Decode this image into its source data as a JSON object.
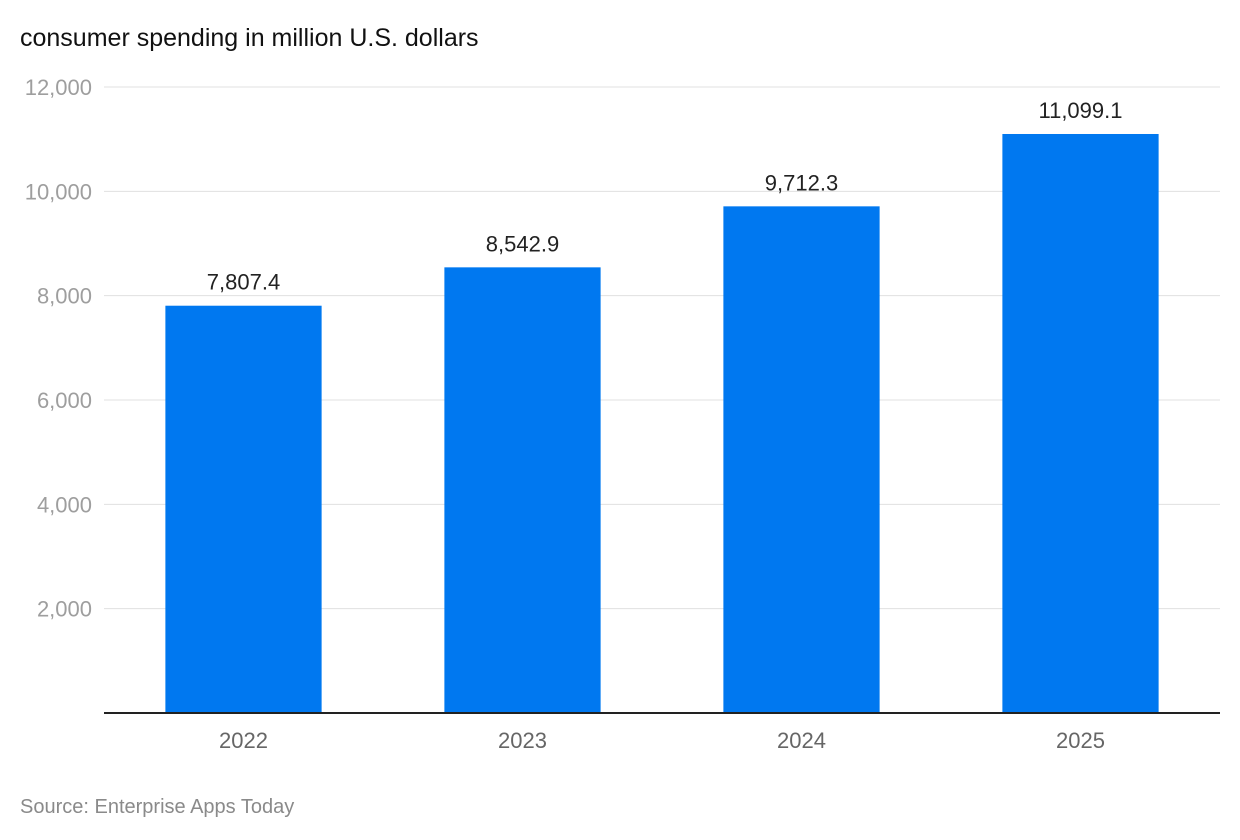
{
  "chart_data": {
    "type": "bar",
    "title": "consumer spending in million U.S. dollars",
    "categories": [
      "2022",
      "2023",
      "2024",
      "2025"
    ],
    "values": [
      7807.4,
      8542.9,
      9712.3,
      11099.1
    ],
    "value_labels": [
      "7,807.4",
      "8,542.9",
      "9,712.3",
      "11,099.1"
    ],
    "y_ticks": [
      2000,
      4000,
      6000,
      8000,
      10000,
      12000
    ],
    "y_tick_labels": [
      "2,000",
      "4,000",
      "6,000",
      "8,000",
      "10,000",
      "12,000"
    ],
    "ylim": [
      0,
      12000
    ],
    "xlabel": "",
    "ylabel": "",
    "grid": true,
    "legend": "none",
    "bar_color": "#0078f0",
    "source": "Source: Enterprise Apps Today"
  }
}
